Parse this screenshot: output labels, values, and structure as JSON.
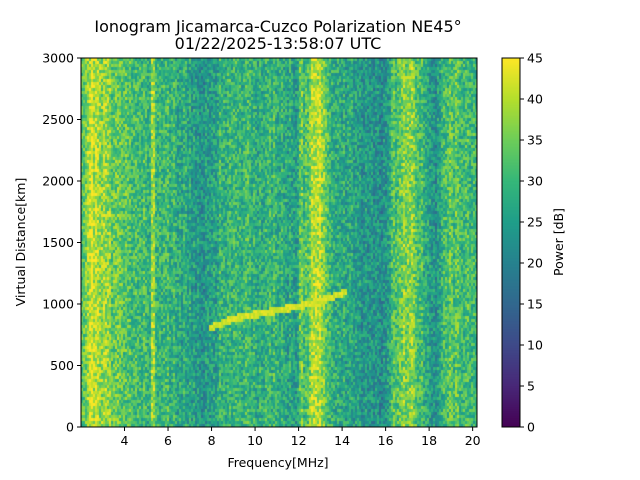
{
  "chart_data": {
    "type": "heatmap",
    "title": "Ionogram Jicamarca-Cuzco Polarization NE45°",
    "subtitle": "01/22/2025-13:58:07 UTC",
    "xlabel": "Frequency[MHz]",
    "ylabel": "Virtual Distance[km]",
    "xlim": [
      2.0,
      20.2
    ],
    "ylim": [
      0,
      3000
    ],
    "xticks": [
      4,
      6,
      8,
      10,
      12,
      14,
      16,
      18,
      20
    ],
    "yticks": [
      0,
      500,
      1000,
      1500,
      2000,
      2500,
      3000
    ],
    "colorbar": {
      "label": "Power [dB]",
      "range": [
        0,
        45
      ],
      "ticks": [
        0,
        5,
        10,
        15,
        20,
        25,
        30,
        35,
        40,
        45
      ],
      "colormap": "viridis"
    },
    "frequency_profile_db": [
      {
        "f": 2.0,
        "db": 30
      },
      {
        "f": 2.2,
        "db": 36
      },
      {
        "f": 2.5,
        "db": 42
      },
      {
        "f": 3.0,
        "db": 38
      },
      {
        "f": 3.5,
        "db": 34
      },
      {
        "f": 4.0,
        "db": 32
      },
      {
        "f": 4.5,
        "db": 31
      },
      {
        "f": 5.0,
        "db": 30
      },
      {
        "f": 5.5,
        "db": 28
      },
      {
        "f": 6.0,
        "db": 30
      },
      {
        "f": 6.5,
        "db": 28
      },
      {
        "f": 7.0,
        "db": 26
      },
      {
        "f": 7.2,
        "db": 24
      },
      {
        "f": 7.5,
        "db": 23
      },
      {
        "f": 7.8,
        "db": 24
      },
      {
        "f": 8.0,
        "db": 25
      },
      {
        "f": 8.5,
        "db": 30
      },
      {
        "f": 9.0,
        "db": 28
      },
      {
        "f": 9.5,
        "db": 30
      },
      {
        "f": 10.0,
        "db": 28
      },
      {
        "f": 10.5,
        "db": 29
      },
      {
        "f": 11.0,
        "db": 30
      },
      {
        "f": 11.5,
        "db": 27
      },
      {
        "f": 12.0,
        "db": 26
      },
      {
        "f": 12.3,
        "db": 31
      },
      {
        "f": 12.6,
        "db": 38
      },
      {
        "f": 12.9,
        "db": 41
      },
      {
        "f": 13.2,
        "db": 36
      },
      {
        "f": 13.5,
        "db": 30
      },
      {
        "f": 14.0,
        "db": 27
      },
      {
        "f": 14.5,
        "db": 26
      },
      {
        "f": 15.0,
        "db": 24
      },
      {
        "f": 15.5,
        "db": 22
      },
      {
        "f": 16.0,
        "db": 24
      },
      {
        "f": 16.4,
        "db": 32
      },
      {
        "f": 16.8,
        "db": 36
      },
      {
        "f": 17.2,
        "db": 38
      },
      {
        "f": 17.6,
        "db": 31
      },
      {
        "f": 18.0,
        "db": 28
      },
      {
        "f": 18.3,
        "db": 22
      },
      {
        "f": 18.6,
        "db": 30
      },
      {
        "f": 19.0,
        "db": 33
      },
      {
        "f": 19.5,
        "db": 31
      },
      {
        "f": 20.2,
        "db": 30
      }
    ],
    "narrow_lines": [
      {
        "f": 5.3,
        "db": 38
      },
      {
        "f": 12.1,
        "db": 34
      }
    ],
    "echo_trace": [
      {
        "f": 7.9,
        "km": 800
      },
      {
        "f": 9.0,
        "km": 880
      },
      {
        "f": 10.5,
        "km": 930
      },
      {
        "f": 12.0,
        "km": 980
      },
      {
        "f": 13.2,
        "km": 1030
      },
      {
        "f": 14.2,
        "km": 1100
      }
    ],
    "echo_db": 42
  }
}
